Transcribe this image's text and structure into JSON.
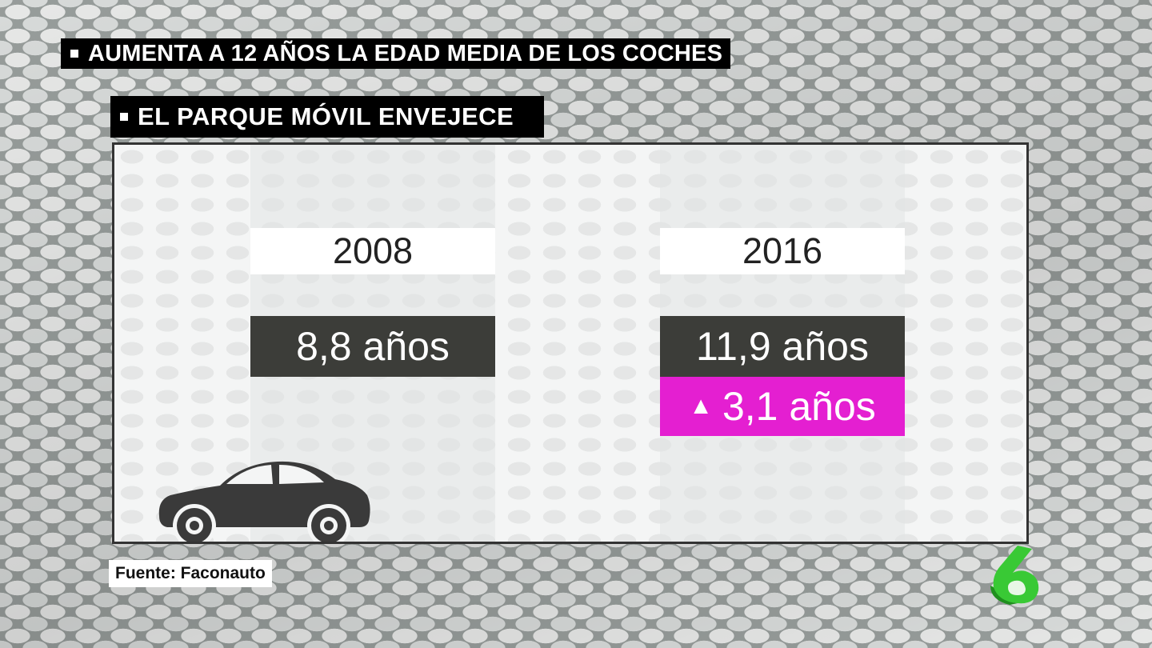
{
  "headline": {
    "main": "AUMENTA A 12 AÑOS LA EDAD MEDIA DE LOS COCHES",
    "sub": "EL PARQUE MÓVIL ENVEJECE"
  },
  "comparison": [
    {
      "year": "2008",
      "value": "8,8 años"
    },
    {
      "year": "2016",
      "value": "11,9 años",
      "delta_symbol": "▲",
      "delta": "3,1 años"
    }
  ],
  "icons": {
    "car": "car-icon",
    "channel_logo": "lasexta-logo",
    "bullet": "square-bullet-icon"
  },
  "colors": {
    "value_box": "#3c3d39",
    "delta_box": "#e41fd1",
    "logo": "#39c935"
  },
  "source": "Fuente: Faconauto"
}
